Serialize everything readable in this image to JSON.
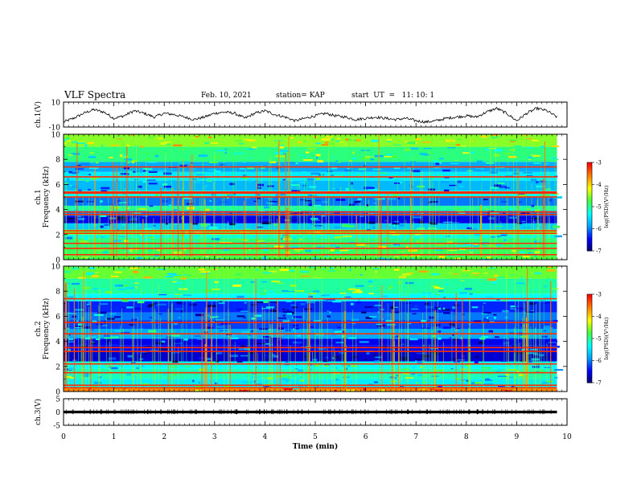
{
  "header": {
    "title": "VLF Spectra",
    "date": "Feb. 10, 2021",
    "station": "station= KAP",
    "start": "start  UT  =   11: 10: 1"
  },
  "chart_data": [
    {
      "type": "line",
      "name": "ch1-waveform",
      "ylabel": "ch.1(V)",
      "ylim": [
        -10,
        10
      ],
      "yticks": [
        "10",
        "-10"
      ],
      "xlim": [
        0,
        10
      ],
      "x": [
        0,
        0.2,
        0.4,
        0.6,
        0.8,
        1.0,
        1.2,
        1.4,
        1.6,
        1.8,
        2.0,
        2.2,
        2.4,
        2.6,
        2.8,
        3.0,
        3.2,
        3.4,
        3.6,
        3.8,
        4.0,
        4.2,
        4.4,
        4.6,
        4.8,
        5.0,
        5.2,
        5.4,
        5.6,
        5.8,
        6.0,
        6.2,
        6.4,
        6.6,
        6.8,
        7.0,
        7.2,
        7.4,
        7.6,
        7.8,
        8.0,
        8.2,
        8.4,
        8.6,
        8.8,
        9.0,
        9.2,
        9.4,
        9.6,
        9.8
      ],
      "y": [
        -6,
        -3,
        1,
        4,
        2,
        -3,
        -1,
        3,
        1,
        -2,
        1,
        0,
        -2,
        -4,
        -2,
        1,
        2,
        1,
        -3,
        1,
        3,
        0,
        -2,
        -5,
        -3,
        -1,
        1,
        -1,
        -2,
        -4,
        -3,
        -2,
        -3,
        -4,
        -3,
        -5,
        -6,
        -5,
        -3,
        -2,
        -1,
        -2,
        2,
        5,
        1,
        -5,
        1,
        5,
        3,
        -2
      ]
    },
    {
      "type": "heatmap",
      "name": "ch1-spectrogram",
      "ylabel": "ch.1\nFrequency (kHz)",
      "ylim": [
        0,
        10
      ],
      "yticks": [
        "0",
        "2",
        "4",
        "6",
        "8",
        "10"
      ],
      "xlim": [
        0,
        10
      ],
      "colorbar": {
        "label": "log(PSD)(V²/Hz)",
        "ticks": [
          "-3",
          "-4",
          "-5",
          "-6",
          "-7"
        ],
        "range": [
          -7,
          -3
        ]
      },
      "bands": [
        {
          "f0": 0.0,
          "f1": 0.3,
          "level": -4.7
        },
        {
          "f0": 0.3,
          "f1": 0.9,
          "level": -4.8
        },
        {
          "f0": 0.9,
          "f1": 1.7,
          "level": -4.9
        },
        {
          "f0": 1.7,
          "f1": 2.0,
          "level": -5.2
        },
        {
          "f0": 2.0,
          "f1": 2.4,
          "level": -4.6
        },
        {
          "f0": 2.4,
          "f1": 2.9,
          "level": -5.6
        },
        {
          "f0": 2.9,
          "f1": 3.5,
          "level": -6.5
        },
        {
          "f0": 3.5,
          "f1": 3.9,
          "level": -6.0
        },
        {
          "f0": 3.9,
          "f1": 4.3,
          "level": -5.0
        },
        {
          "f0": 4.3,
          "f1": 5.0,
          "level": -6.0
        },
        {
          "f0": 5.0,
          "f1": 5.5,
          "level": -5.3
        },
        {
          "f0": 5.5,
          "f1": 6.3,
          "level": -5.7
        },
        {
          "f0": 6.3,
          "f1": 7.0,
          "level": -5.4
        },
        {
          "f0": 7.0,
          "f1": 7.8,
          "level": -5.8
        },
        {
          "f0": 7.8,
          "f1": 9.0,
          "level": -4.9
        },
        {
          "f0": 9.0,
          "f1": 10.0,
          "level": -4.5
        }
      ],
      "lines_khz": [
        0.4,
        0.9,
        1.3,
        2.1,
        2.3,
        3.6,
        3.8,
        5.0,
        5.3,
        5.4,
        6.6,
        7.4
      ]
    },
    {
      "type": "heatmap",
      "name": "ch2-spectrogram",
      "ylabel": "ch.2\nFrequency (kHz)",
      "ylim": [
        0,
        10
      ],
      "yticks": [
        "0",
        "2",
        "4",
        "6",
        "8",
        "10"
      ],
      "xlim": [
        0,
        10
      ],
      "colorbar": {
        "label": "log(PSD)(V²/Hz)",
        "ticks": [
          "-3",
          "-4",
          "-5",
          "-6",
          "-7"
        ],
        "range": [
          -7,
          -3
        ]
      },
      "bands": [
        {
          "f0": 0.0,
          "f1": 0.3,
          "level": -3.6
        },
        {
          "f0": 0.3,
          "f1": 1.0,
          "level": -5.4
        },
        {
          "f0": 1.0,
          "f1": 1.8,
          "level": -5.1
        },
        {
          "f0": 1.8,
          "f1": 2.4,
          "level": -5.3
        },
        {
          "f0": 2.4,
          "f1": 3.2,
          "level": -6.6
        },
        {
          "f0": 3.2,
          "f1": 3.7,
          "level": -6.4
        },
        {
          "f0": 3.7,
          "f1": 4.2,
          "level": -6.5
        },
        {
          "f0": 4.2,
          "f1": 5.0,
          "level": -5.8
        },
        {
          "f0": 5.0,
          "f1": 5.7,
          "level": -6.2
        },
        {
          "f0": 5.7,
          "f1": 6.3,
          "level": -6.0
        },
        {
          "f0": 6.3,
          "f1": 7.2,
          "level": -6.3
        },
        {
          "f0": 7.2,
          "f1": 7.8,
          "level": -5.3
        },
        {
          "f0": 7.8,
          "f1": 9.0,
          "level": -5.0
        },
        {
          "f0": 9.0,
          "f1": 10.0,
          "level": -4.6
        }
      ],
      "lines_khz": [
        0.3,
        0.5,
        1.5,
        2.2,
        3.2,
        3.5,
        4.6,
        5.5,
        7.4
      ]
    },
    {
      "type": "line",
      "name": "ch3-waveform",
      "ylabel": "ch.3(V)",
      "ylim": [
        -5,
        5
      ],
      "yticks": [
        "5",
        "0",
        "-5"
      ],
      "xlim": [
        0,
        10
      ],
      "xticks": [
        "0",
        "1",
        "2",
        "3",
        "4",
        "5",
        "6",
        "7",
        "8",
        "9",
        "10"
      ],
      "xlabel": "Time  (min)",
      "band_center": 0,
      "band_halfwidth": 0.5,
      "end_min": 9.8
    }
  ],
  "colors": {
    "axis": "#000000",
    "trace": "#000000",
    "colormap": [
      "#000066",
      "#0000ff",
      "#00a0ff",
      "#00ffff",
      "#40ff40",
      "#ffff00",
      "#ff8000",
      "#ff0000",
      "#ffffff"
    ]
  }
}
